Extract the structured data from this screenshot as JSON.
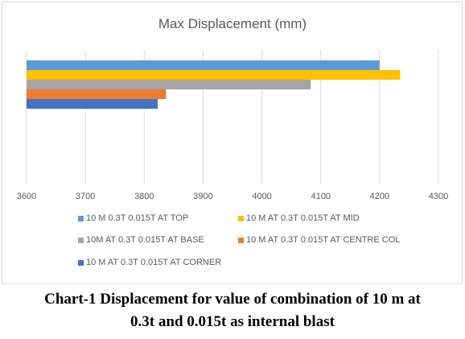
{
  "chart_data": {
    "type": "bar",
    "orientation": "horizontal",
    "title": "Max Displacement (mm)",
    "xlim": [
      3600,
      4300
    ],
    "x_ticks": [
      "3600",
      "3700",
      "3800",
      "3900",
      "4000",
      "4100",
      "4200",
      "4300"
    ],
    "grid": "vertical",
    "legend_position": "bottom",
    "series": [
      {
        "name": "10 M 0.3T 0.015T AT TOP",
        "value": 4200,
        "color": "#5b9bd5"
      },
      {
        "name": "10 M AT 0.3T 0.015T AT MID",
        "value": 4235,
        "color": "#ffc000"
      },
      {
        "name": "10M AT 0.3T 0.015T AT BASE",
        "value": 4083,
        "color": "#a5a5a5"
      },
      {
        "name": "10 M AT 0.3T 0.015T AT CENTRE COL",
        "value": 3837,
        "color": "#ed7d31"
      },
      {
        "name": "10 M AT 0.3T 0.015T AT CORNER",
        "value": 3823,
        "color": "#4472c4"
      }
    ]
  },
  "caption": {
    "line1": "Chart-1 Displacement for value of combination of 10 m at",
    "line2": "0.3t and 0.015t as internal blast"
  }
}
